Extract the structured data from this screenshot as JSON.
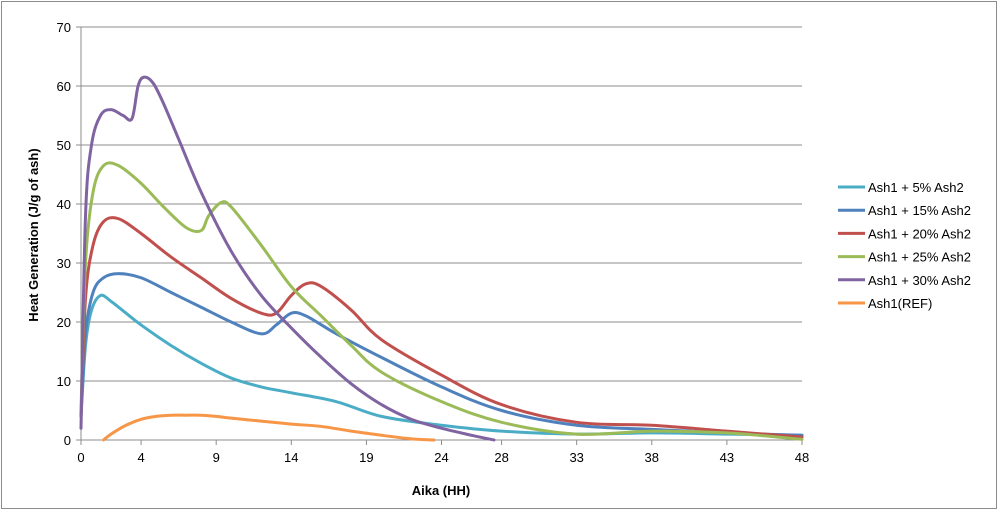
{
  "chart_data": {
    "type": "line",
    "title": "",
    "xlabel": "Aika (HH)",
    "ylabel": "Heat Generation (J/g of ash)",
    "xlim": [
      0,
      48
    ],
    "ylim": [
      0,
      70
    ],
    "xticks": [
      "0",
      "4",
      "9",
      "14",
      "19",
      "24",
      "28",
      "33",
      "38",
      "43",
      "48"
    ],
    "xtick_values": [
      0,
      4,
      9,
      14,
      19,
      24,
      28,
      33,
      38,
      43,
      48
    ],
    "yticks": [
      "0",
      "10",
      "20",
      "30",
      "40",
      "50",
      "60",
      "70"
    ],
    "ytick_values": [
      0,
      10,
      20,
      30,
      40,
      50,
      60,
      70
    ],
    "grid": "horizontal",
    "legend_position": "right",
    "series": [
      {
        "name": "Ash1 + 5% Ash2",
        "color": "#4bacc6",
        "x": [
          0,
          0.3,
          0.7,
          1.3,
          2,
          3,
          4,
          6,
          8,
          10,
          12,
          14,
          17,
          20,
          24,
          28,
          33,
          38,
          43,
          48
        ],
        "y": [
          4,
          16,
          22,
          24.5,
          23.5,
          21.5,
          19.5,
          16,
          13,
          10.5,
          9,
          8,
          6.5,
          4,
          2.5,
          1.5,
          1,
          1.2,
          1,
          0.8
        ]
      },
      {
        "name": "Ash1 + 15% Ash2",
        "color": "#4f81bd",
        "x": [
          0,
          0.3,
          0.8,
          1.5,
          2.5,
          4,
          6,
          8,
          10,
          12,
          13,
          14,
          15,
          17,
          20,
          24,
          28,
          33,
          38,
          43,
          48
        ],
        "y": [
          4,
          18,
          25,
          27.5,
          28.2,
          27.5,
          25,
          22.5,
          20,
          18,
          19.5,
          21.5,
          21,
          18,
          14,
          9,
          5,
          2.5,
          1.8,
          1.2,
          0.8
        ]
      },
      {
        "name": "Ash1 + 20% Ash2",
        "color": "#c0504d",
        "x": [
          0,
          0.3,
          0.8,
          1.5,
          2.5,
          4,
          6,
          8,
          10,
          12,
          13,
          14,
          15,
          16,
          18,
          20,
          24,
          28,
          33,
          38,
          43,
          48
        ],
        "y": [
          4,
          24,
          33,
          37,
          37.5,
          35,
          31,
          27.5,
          24,
          21.5,
          21.5,
          24.5,
          26.5,
          26,
          22,
          17,
          11,
          6,
          3,
          2.5,
          1.5,
          0.5
        ]
      },
      {
        "name": "Ash1 + 25% Ash2",
        "color": "#9bbb59",
        "x": [
          0,
          0.3,
          0.8,
          1.5,
          2.5,
          4,
          5.5,
          7,
          8,
          8.5,
          9.3,
          10,
          12,
          14,
          16,
          18,
          20,
          24,
          28,
          33,
          38,
          43,
          48
        ],
        "y": [
          5,
          30,
          42,
          46.5,
          46.5,
          43.5,
          39.5,
          36,
          35.5,
          38,
          40.2,
          39.5,
          33,
          26,
          21,
          16,
          11.5,
          6.5,
          3,
          1,
          1.5,
          1.2,
          0.1
        ]
      },
      {
        "name": "Ash1 + 30% Ash2",
        "color": "#8064a2",
        "x": [
          0,
          0.3,
          0.7,
          1.3,
          2,
          2.8,
          3.4,
          3.8,
          4.2,
          4.8,
          5.5,
          6.5,
          8,
          10,
          12,
          14,
          16,
          18,
          20,
          22,
          24,
          26,
          27.5
        ],
        "y": [
          2,
          38,
          50,
          55,
          56,
          55,
          54.5,
          60,
          61.5,
          60.5,
          57,
          51,
          42,
          32,
          24.5,
          19,
          14,
          9.5,
          6,
          3.5,
          2,
          0.8,
          0
        ]
      },
      {
        "name": "Ash1(REF)",
        "color": "#f79646",
        "x": [
          1.5,
          2,
          3,
          4,
          5,
          6,
          7,
          8,
          9,
          10,
          12,
          14,
          16,
          18,
          20,
          22,
          23.5
        ],
        "y": [
          0,
          1,
          2.5,
          3.5,
          4,
          4.2,
          4.2,
          4.2,
          4,
          3.7,
          3.2,
          2.7,
          2.3,
          1.5,
          0.8,
          0.2,
          0
        ]
      }
    ]
  }
}
